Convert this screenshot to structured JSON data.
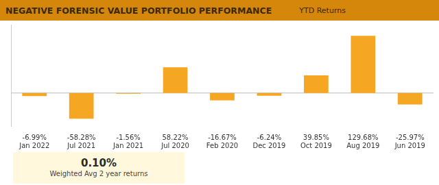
{
  "chart_data": {
    "type": "bar",
    "title": "NEGATIVE FORENSIC VALUE PORTFOLIO PERFORMANCE",
    "subtitle": "YTD Returns",
    "categories": [
      "Jan 2022",
      "Jul 2021",
      "Jan 2021",
      "Jul 2020",
      "Feb 2020",
      "Dec 2019",
      "Oct 2019",
      "Aug 2019",
      "Jun 2019"
    ],
    "values": [
      -6.99,
      -58.28,
      -1.56,
      58.22,
      -16.67,
      -6.24,
      39.85,
      129.68,
      -25.97
    ],
    "value_labels": [
      "-6.99%",
      "-58.28%",
      "-1.56%",
      "58.22%",
      "-16.67%",
      "-6.24%",
      "39.85%",
      "129.68%",
      "-25.97%"
    ],
    "data_labels": true,
    "color": "#F5A623",
    "ylim": [
      -75,
      155
    ],
    "tick_labels": "x",
    "grid": false,
    "annotations": [
      "0.10%",
      "Weighted Avg 2 year returns"
    ]
  }
}
